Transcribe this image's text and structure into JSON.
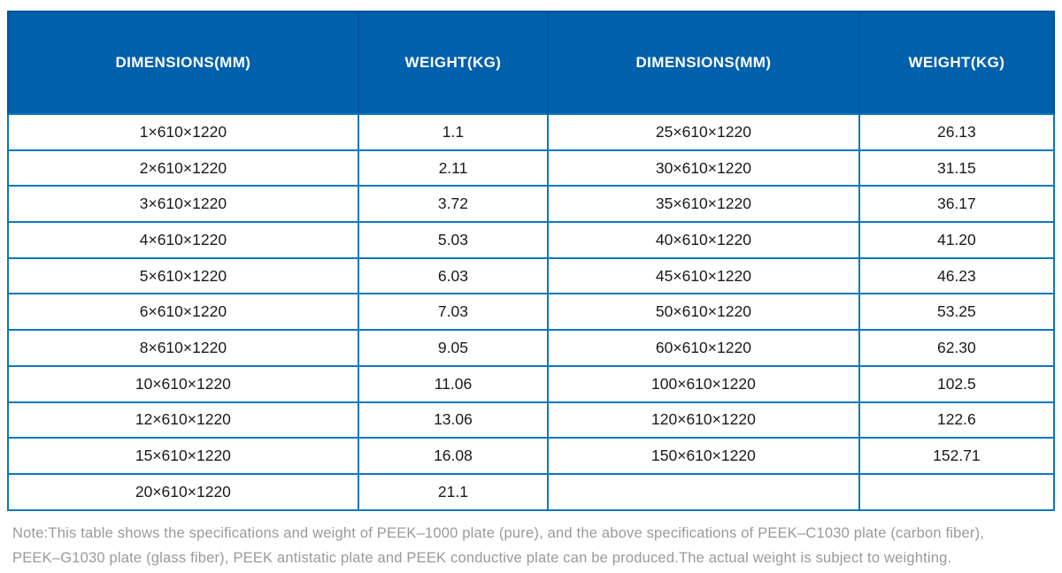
{
  "colors": {
    "header_bg": "#0060AC",
    "header_border": "#02549E",
    "grid_border": "#0A79B9",
    "header_text": "#FFFFFF",
    "cell_text": "#1A1A1A",
    "note_text": "#9A9A9A"
  },
  "table": {
    "headers": [
      "DIMENSIONS(MM)",
      "WEIGHT(KG)",
      "DIMENSIONS(MM)",
      "WEIGHT(KG)"
    ],
    "rows": [
      [
        "1×610×1220",
        "1.1",
        "25×610×1220",
        "26.13"
      ],
      [
        "2×610×1220",
        "2.11",
        "30×610×1220",
        "31.15"
      ],
      [
        "3×610×1220",
        "3.72",
        "35×610×1220",
        "36.17"
      ],
      [
        "4×610×1220",
        "5.03",
        "40×610×1220",
        "41.20"
      ],
      [
        "5×610×1220",
        "6.03",
        "45×610×1220",
        "46.23"
      ],
      [
        "6×610×1220",
        "7.03",
        "50×610×1220",
        "53.25"
      ],
      [
        "8×610×1220",
        "9.05",
        "60×610×1220",
        "62.30"
      ],
      [
        "10×610×1220",
        "11.06",
        "100×610×1220",
        "102.5"
      ],
      [
        "12×610×1220",
        "13.06",
        "120×610×1220",
        "122.6"
      ],
      [
        "15×610×1220",
        "16.08",
        "150×610×1220",
        "152.71"
      ],
      [
        "20×610×1220",
        "21.1",
        "",
        ""
      ]
    ]
  },
  "note": {
    "line1": "Note:This table shows the specifications and weight of PEEK–1000 plate (pure), and the above specifications of PEEK–C1030 plate (carbon fiber),",
    "line2": "PEEK–G1030 plate (glass fiber), PEEK antistatic plate and PEEK conductive plate can be produced.The actual weight is subject to weighting."
  }
}
